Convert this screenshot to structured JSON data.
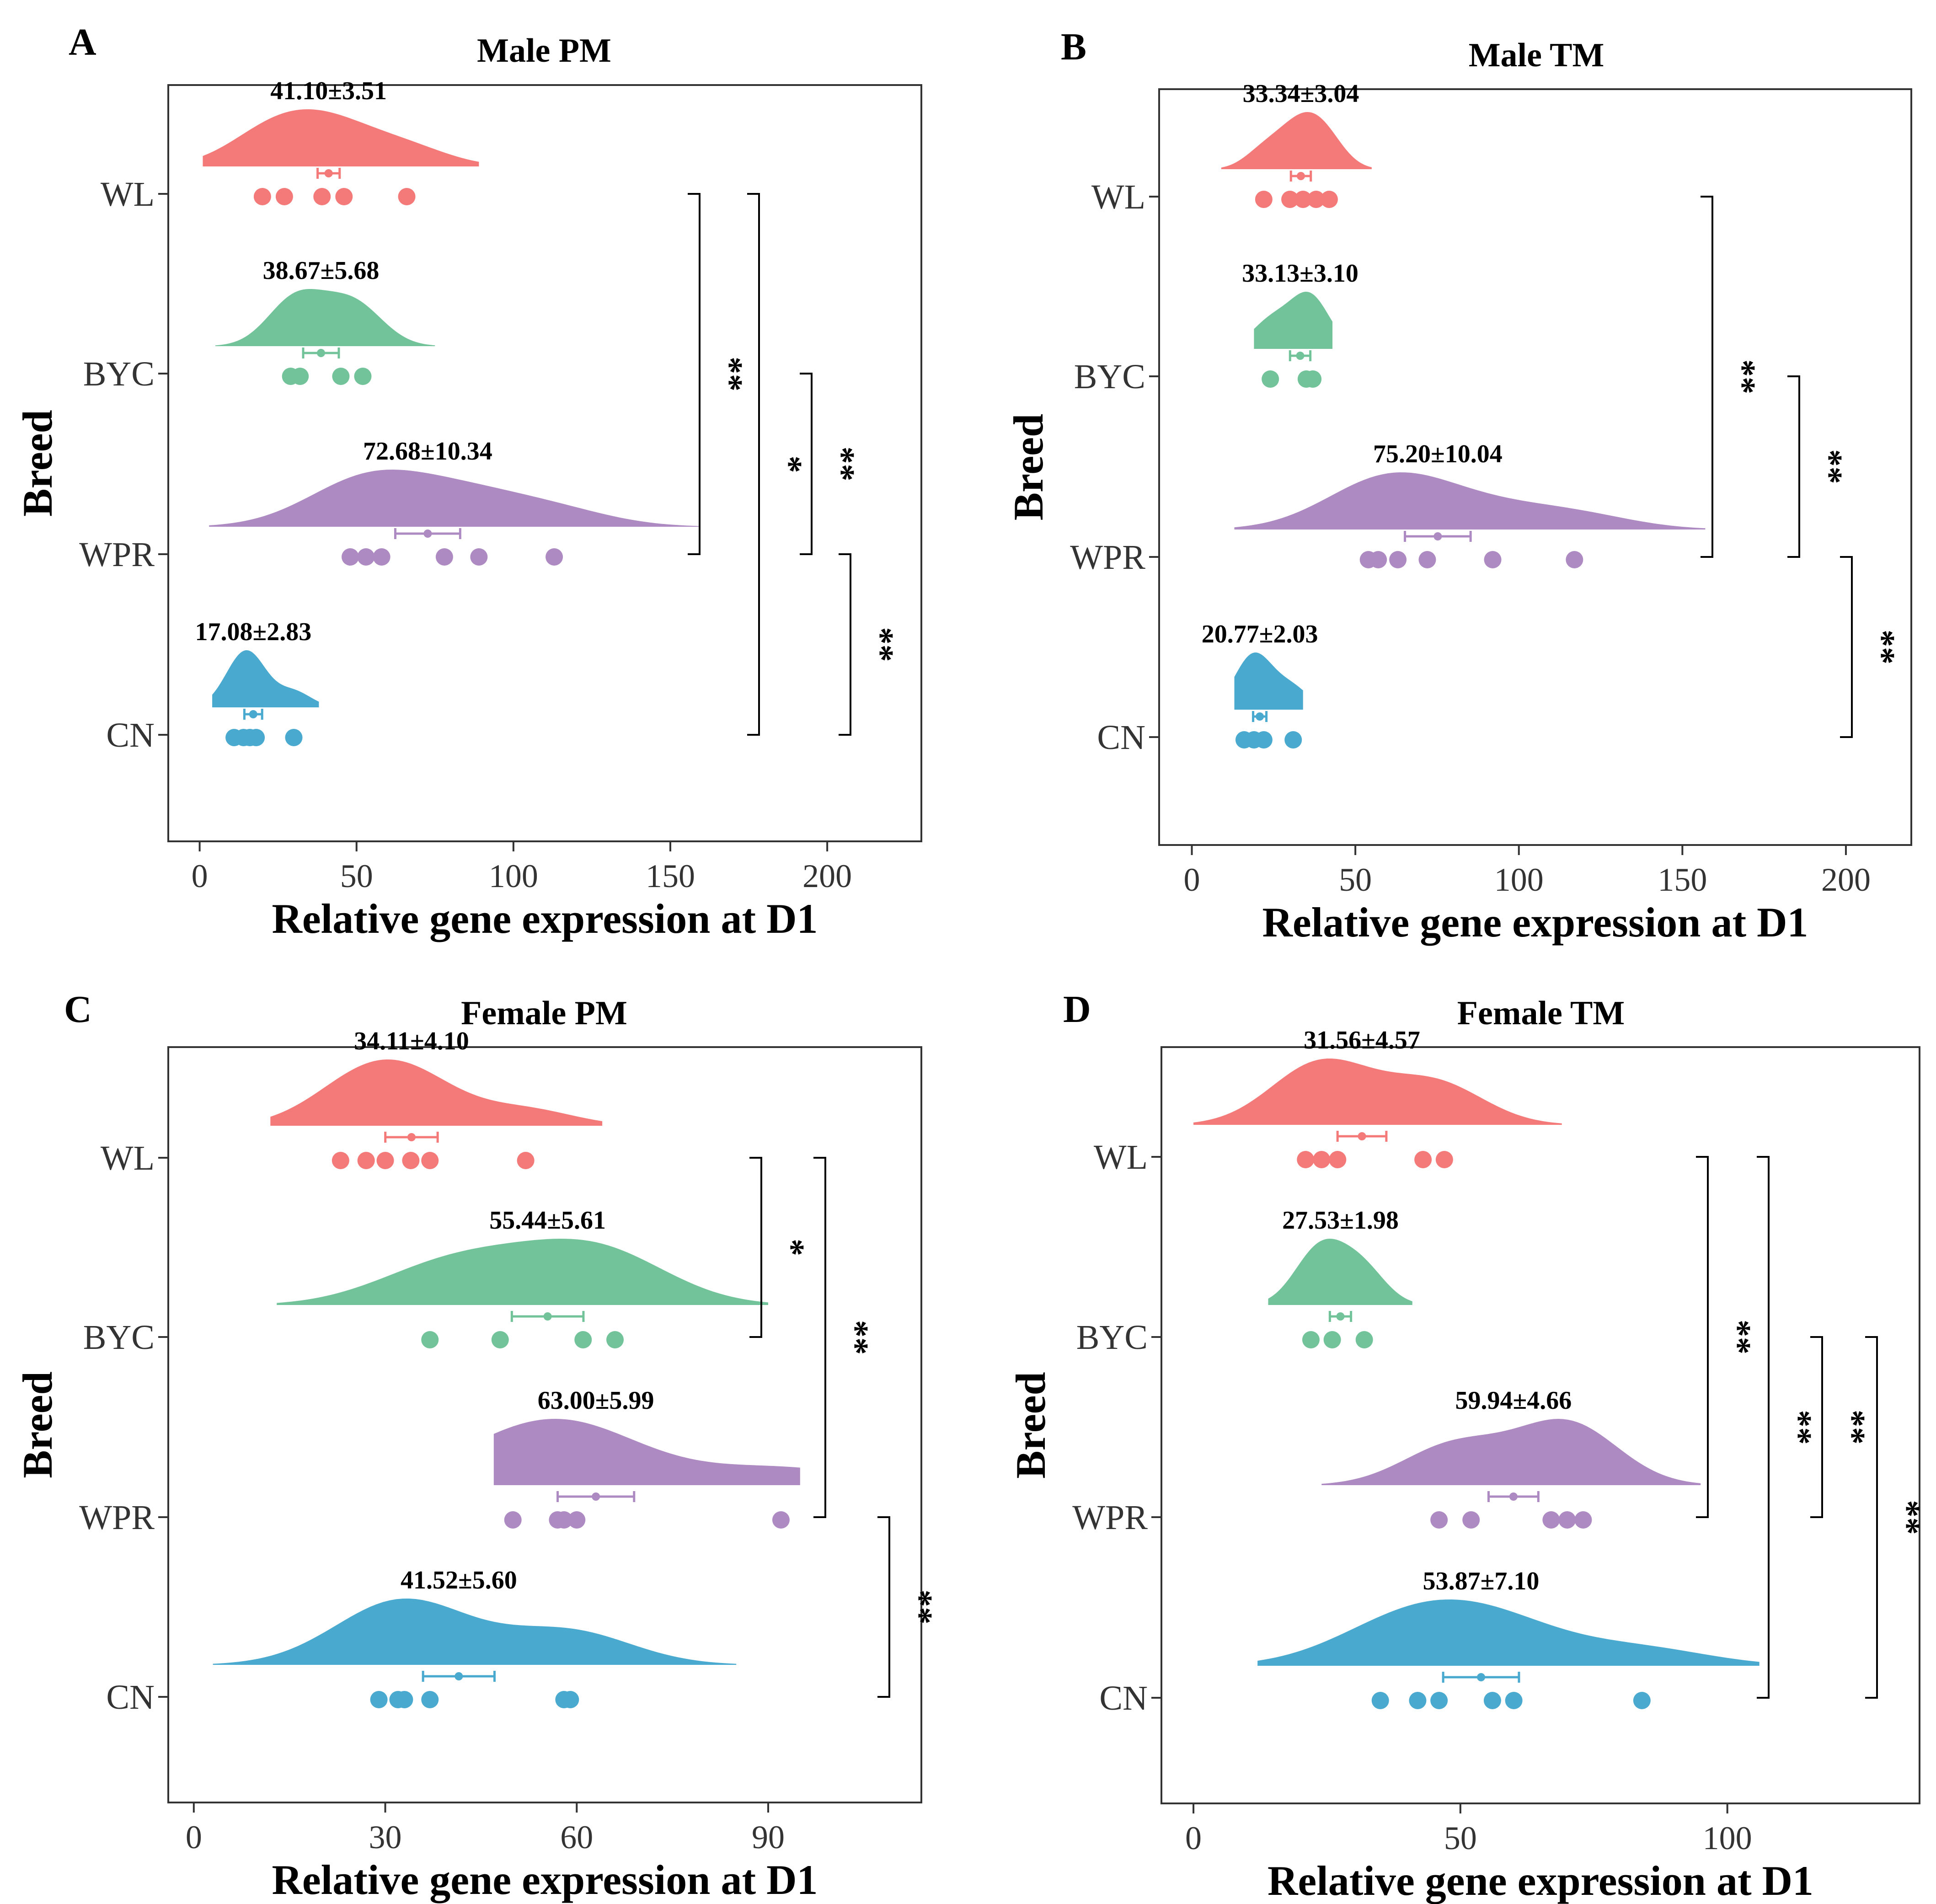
{
  "colors": {
    "WL": "#f47a7a",
    "BYC": "#72c39a",
    "WPR": "#ad8bc2",
    "CN": "#4aa9cf"
  },
  "chart_data": [
    {
      "type": "raincloud",
      "panel_letter": "A",
      "title": "Male PM",
      "xlabel": "Relative gene expression at D1",
      "ylabel": "Breed",
      "xlim": [
        -10,
        230
      ],
      "xticks": [
        0,
        50,
        100,
        150,
        200
      ],
      "categories": [
        "WL",
        "BYC",
        "WPR",
        "CN"
      ],
      "series": [
        {
          "name": "WL",
          "label": "41.10±3.51",
          "mean": 41.1,
          "se": 3.51,
          "points": [
            20,
            27,
            39,
            46,
            66
          ],
          "density_range": [
            1,
            89
          ]
        },
        {
          "name": "BYC",
          "label": "38.67±5.68",
          "mean": 38.67,
          "se": 5.68,
          "points": [
            29,
            32,
            45,
            52
          ],
          "density_range": [
            5,
            75
          ]
        },
        {
          "name": "WPR",
          "label": "72.68±10.34",
          "mean": 72.68,
          "se": 10.34,
          "points": [
            48,
            53,
            58,
            78,
            89,
            113
          ],
          "density_range": [
            3,
            159
          ]
        },
        {
          "name": "CN",
          "label": "17.08±2.83",
          "mean": 17.08,
          "se": 2.83,
          "points": [
            11,
            14,
            16,
            18,
            30
          ],
          "density_range": [
            4,
            38
          ]
        }
      ],
      "comparisons": [
        {
          "groups": [
            "WL",
            "WPR"
          ],
          "sig": "**"
        },
        {
          "groups": [
            "WL",
            "CN"
          ],
          "sig": "*"
        },
        {
          "groups": [
            "BYC",
            "WPR"
          ],
          "sig": "**"
        },
        {
          "groups": [
            "WPR",
            "CN"
          ],
          "sig": "**"
        }
      ]
    },
    {
      "type": "raincloud",
      "panel_letter": "B",
      "title": "Male TM",
      "xlabel": "Relative gene expression at D1",
      "ylabel": "Breed",
      "xlim": [
        -10,
        220
      ],
      "xticks": [
        0,
        50,
        100,
        150,
        200
      ],
      "categories": [
        "WL",
        "BYC",
        "WPR",
        "CN"
      ],
      "series": [
        {
          "name": "WL",
          "label": "33.34±3.04",
          "mean": 33.34,
          "se": 3.04,
          "points": [
            22,
            30,
            34,
            38,
            42
          ],
          "density_range": [
            9,
            55
          ]
        },
        {
          "name": "BYC",
          "label": "33.13±3.10",
          "mean": 33.13,
          "se": 3.1,
          "points": [
            24,
            35,
            37
          ],
          "density_range": [
            19,
            43
          ]
        },
        {
          "name": "WPR",
          "label": "75.20±10.04",
          "mean": 75.2,
          "se": 10.04,
          "points": [
            54,
            57,
            63,
            72,
            92,
            117
          ],
          "density_range": [
            13,
            157
          ]
        },
        {
          "name": "CN",
          "label": "20.77±2.03",
          "mean": 20.77,
          "se": 2.03,
          "points": [
            16,
            19,
            22,
            31
          ],
          "density_range": [
            13,
            34
          ]
        }
      ],
      "comparisons": [
        {
          "groups": [
            "WL",
            "WPR"
          ],
          "sig": "**"
        },
        {
          "groups": [
            "BYC",
            "WPR"
          ],
          "sig": "**"
        },
        {
          "groups": [
            "WPR",
            "CN"
          ],
          "sig": "**"
        }
      ]
    },
    {
      "type": "raincloud",
      "panel_letter": "C",
      "title": "Female PM",
      "xlabel": "Relative gene expression at D1",
      "ylabel": "Breed",
      "xlim": [
        -4,
        114
      ],
      "xticks": [
        0,
        30,
        60,
        90
      ],
      "categories": [
        "WL",
        "BYC",
        "WPR",
        "CN"
      ],
      "series": [
        {
          "name": "WL",
          "label": "34.11±4.10",
          "mean": 34.11,
          "se": 4.1,
          "points": [
            23,
            27,
            30,
            34,
            37,
            52
          ],
          "density_range": [
            12,
            64
          ]
        },
        {
          "name": "BYC",
          "label": "55.44±5.61",
          "mean": 55.44,
          "se": 5.61,
          "points": [
            37,
            48,
            61,
            66
          ],
          "density_range": [
            13,
            90
          ]
        },
        {
          "name": "WPR",
          "label": "63.00±5.99",
          "mean": 63.0,
          "se": 5.99,
          "points": [
            50,
            57,
            58,
            60,
            92
          ],
          "density_range": [
            47,
            95
          ]
        },
        {
          "name": "CN",
          "label": "41.52±5.60",
          "mean": 41.52,
          "se": 5.6,
          "points": [
            29,
            32,
            33,
            37,
            58,
            59
          ],
          "density_range": [
            3,
            85
          ]
        }
      ],
      "comparisons": [
        {
          "groups": [
            "WL",
            "BYC"
          ],
          "sig": "*"
        },
        {
          "groups": [
            "WL",
            "WPR"
          ],
          "sig": "**"
        },
        {
          "groups": [
            "WPR",
            "CN"
          ],
          "sig": "**"
        }
      ]
    },
    {
      "type": "raincloud",
      "panel_letter": "D",
      "title": "Female TM",
      "xlabel": "Relative gene expression at D1",
      "ylabel": "Breed",
      "xlim": [
        -6,
        136
      ],
      "xticks": [
        0,
        50,
        100
      ],
      "categories": [
        "WL",
        "BYC",
        "WPR",
        "CN"
      ],
      "series": [
        {
          "name": "WL",
          "label": "31.56±4.57",
          "mean": 31.56,
          "se": 4.57,
          "points": [
            21,
            24,
            27,
            43,
            47
          ],
          "density_range": [
            0,
            69
          ]
        },
        {
          "name": "BYC",
          "label": "27.53±1.98",
          "mean": 27.53,
          "se": 1.98,
          "points": [
            22,
            26,
            32
          ],
          "density_range": [
            14,
            41
          ]
        },
        {
          "name": "WPR",
          "label": "59.94±4.66",
          "mean": 59.94,
          "se": 4.66,
          "points": [
            46,
            52,
            67,
            70,
            73
          ],
          "density_range": [
            24,
            95
          ]
        },
        {
          "name": "CN",
          "label": "53.87±7.10",
          "mean": 53.87,
          "se": 7.1,
          "points": [
            35,
            42,
            46,
            56,
            60,
            84
          ],
          "density_range": [
            12,
            106
          ]
        }
      ],
      "comparisons": [
        {
          "groups": [
            "WL",
            "WPR"
          ],
          "sig": "**"
        },
        {
          "groups": [
            "WL",
            "CN"
          ],
          "sig": "**"
        },
        {
          "groups": [
            "BYC",
            "WPR"
          ],
          "sig": "**"
        },
        {
          "groups": [
            "BYC",
            "CN"
          ],
          "sig": "**"
        }
      ]
    }
  ]
}
